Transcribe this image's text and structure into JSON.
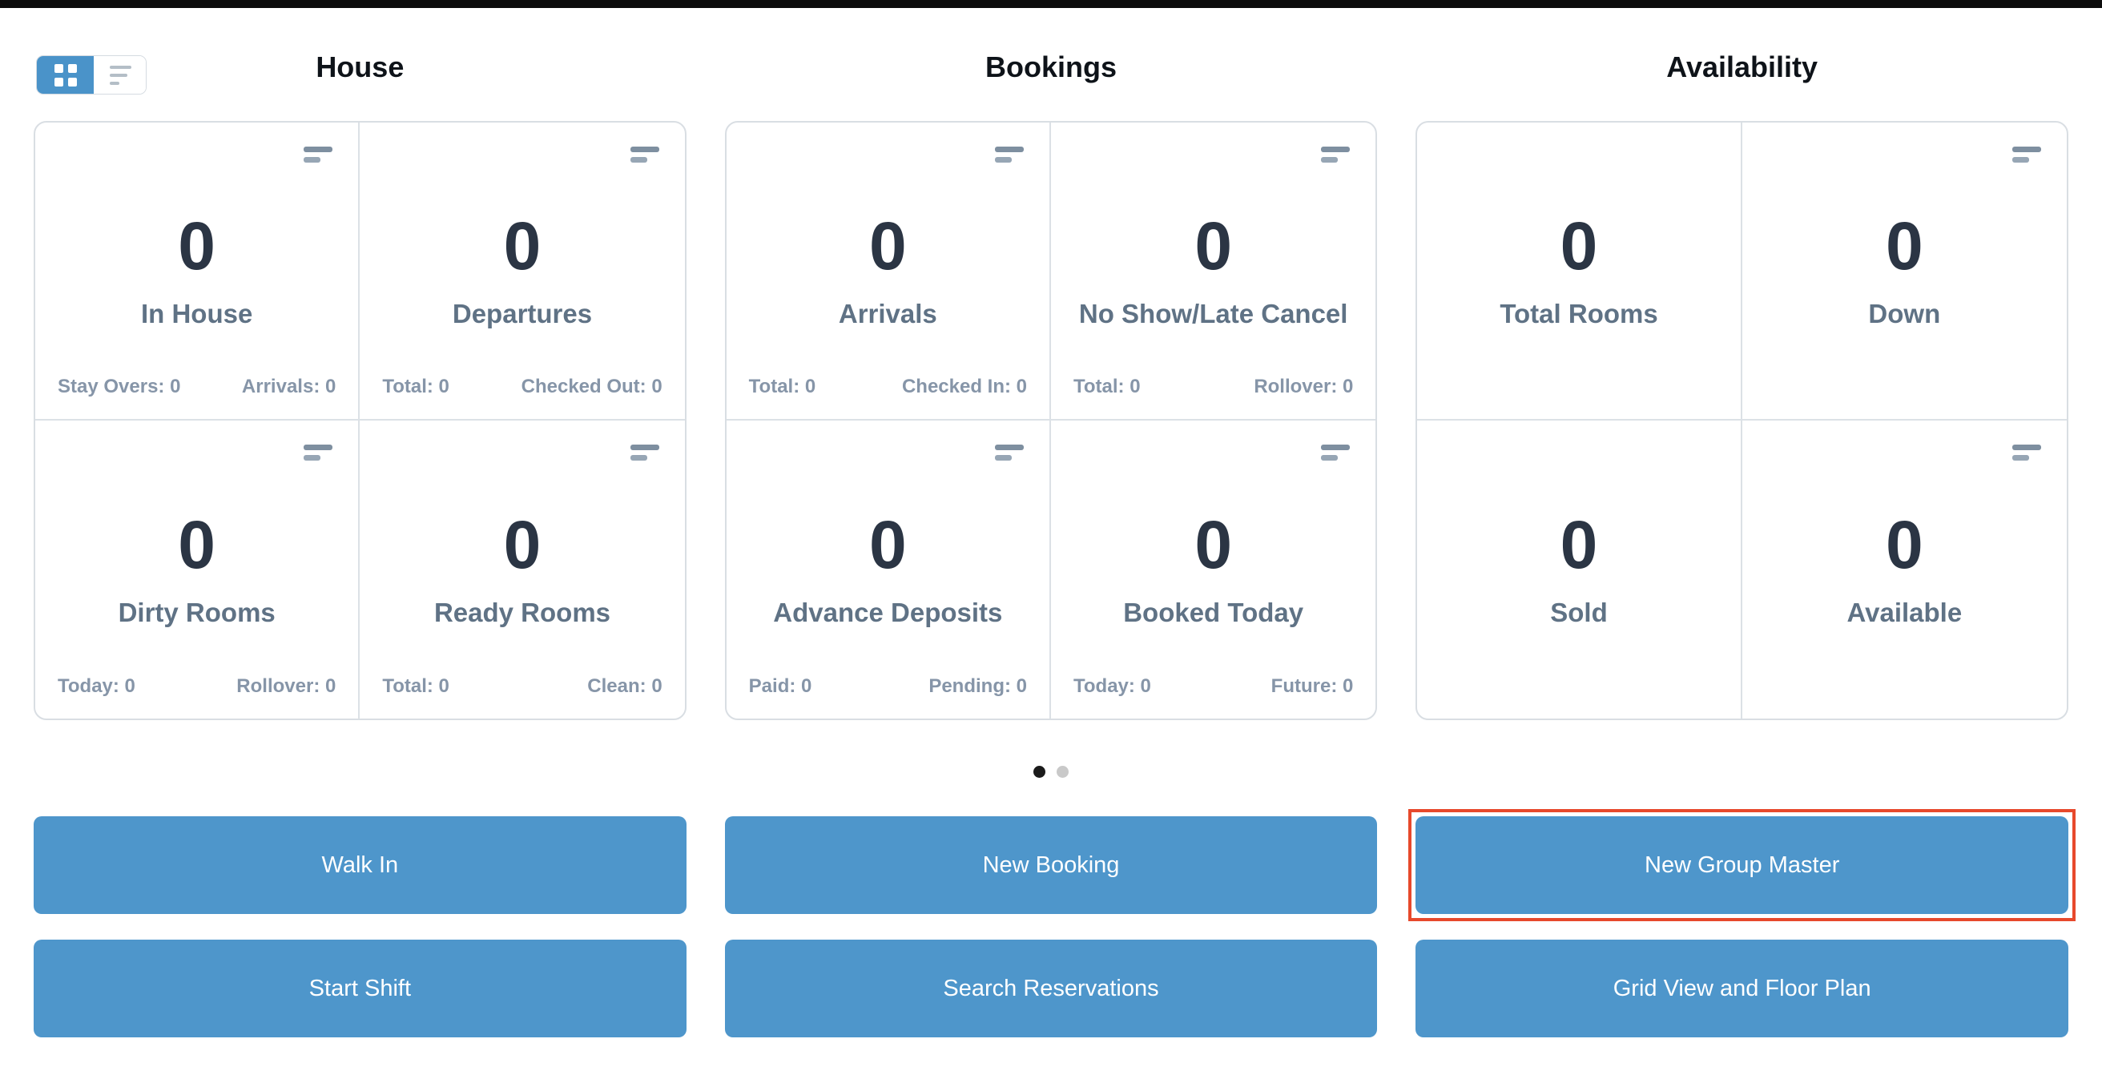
{
  "topbar": {},
  "view_toggle": {
    "grid_selected": true,
    "grid_icon": "grid-view-icon",
    "list_icon": "list-view-icon"
  },
  "headers": {
    "col1": "House",
    "col2": "Bookings",
    "col3": "Availability"
  },
  "groups": [
    {
      "name": "House",
      "cells": [
        {
          "value": "0",
          "label": "In House",
          "footer_left": "Stay Overs: 0",
          "footer_right": "Arrivals: 0"
        },
        {
          "value": "0",
          "label": "Departures",
          "footer_left": "Total: 0",
          "footer_right": "Checked Out: 0"
        },
        {
          "value": "0",
          "label": "Dirty Rooms",
          "footer_left": "Today: 0",
          "footer_right": "Rollover: 0"
        },
        {
          "value": "0",
          "label": "Ready Rooms",
          "footer_left": "Total: 0",
          "footer_right": "Clean: 0"
        }
      ]
    },
    {
      "name": "Bookings",
      "cells": [
        {
          "value": "0",
          "label": "Arrivals",
          "footer_left": "Total: 0",
          "footer_right": "Checked In: 0"
        },
        {
          "value": "0",
          "label": "No Show/Late Cancel",
          "footer_left": "Total: 0",
          "footer_right": "Rollover: 0"
        },
        {
          "value": "0",
          "label": "Advance Deposits",
          "footer_left": "Paid: 0",
          "footer_right": "Pending: 0"
        },
        {
          "value": "0",
          "label": "Booked Today",
          "footer_left": "Today: 0",
          "footer_right": "Future: 0"
        }
      ]
    },
    {
      "name": "Availability",
      "cells": [
        {
          "value": "0",
          "label": "Total Rooms"
        },
        {
          "value": "0",
          "label": "Down"
        },
        {
          "value": "0",
          "label": "Sold"
        },
        {
          "value": "0",
          "label": "Available"
        }
      ]
    }
  ],
  "carousel": {
    "dot_count": 2,
    "active_index": 0
  },
  "buttons": {
    "rows": [
      [
        "Walk In",
        "New Booking",
        "New Group Master"
      ],
      [
        "Start Shift",
        "Search Reservations",
        "Grid View and Floor Plan"
      ]
    ],
    "highlighted": "New Group Master"
  },
  "colors": {
    "accent_blue": "#4e96cb",
    "toggle_blue": "#4a93c9",
    "highlight_red": "#e7492c",
    "value_dark": "#2b3544",
    "label_gray": "#5f7285",
    "footer_gray": "#8695a8",
    "border_gray": "#d9dee3",
    "dot_active": "#1b1b1b",
    "dot_inactive": "#c9c9c9"
  }
}
